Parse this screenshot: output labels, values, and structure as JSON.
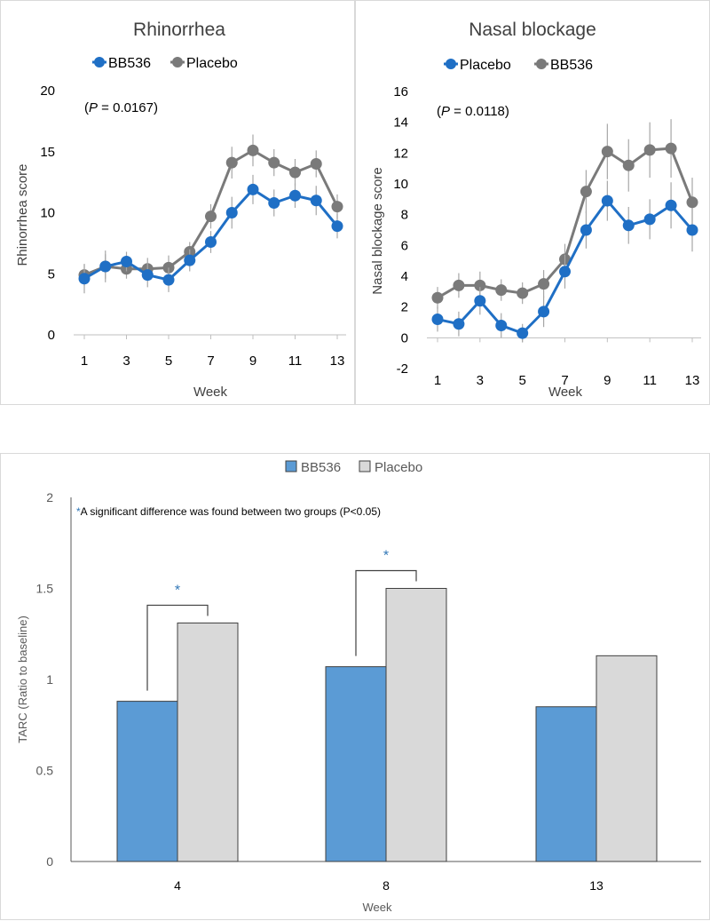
{
  "colors": {
    "blue": "#1f6fc5",
    "gray": "#7a7a7a",
    "bar_blue": "#5b9bd5",
    "bar_gray": "#d9d9d9",
    "star": "#2e75b6",
    "error": "#a6a6a6"
  },
  "chart_data": [
    {
      "id": "rhinorrhea",
      "type": "line",
      "title": "Rhinorrhea",
      "xlabel": "Week",
      "ylabel": "Rhinorrhea score",
      "annotation": "(P = 0.0167)",
      "annotation_parts": [
        "(",
        "P",
        " = 0.0167)"
      ],
      "ylim": [
        0,
        20
      ],
      "yticks": [
        0,
        5,
        10,
        15,
        20
      ],
      "xlim": [
        1,
        13
      ],
      "xticks": [
        1,
        3,
        5,
        7,
        9,
        11,
        13
      ],
      "x": [
        1,
        2,
        3,
        4,
        5,
        6,
        7,
        8,
        9,
        10,
        11,
        12,
        13
      ],
      "legend": [
        {
          "label": "BB536",
          "color": "blue"
        },
        {
          "label": "Placebo",
          "color": "gray"
        }
      ],
      "series": [
        {
          "name": "Placebo",
          "color": "gray",
          "values": [
            4.9,
            5.6,
            5.4,
            5.4,
            5.5,
            6.8,
            9.7,
            14.1,
            15.1,
            14.1,
            13.3,
            14.0,
            10.5
          ],
          "errors": [
            0.9,
            1.3,
            0.8,
            0.9,
            1.0,
            0.8,
            1.0,
            1.3,
            1.3,
            1.1,
            1.1,
            1.1,
            1.0
          ]
        },
        {
          "name": "BB536",
          "color": "blue",
          "values": [
            4.6,
            5.6,
            6.0,
            4.9,
            4.5,
            6.1,
            7.6,
            10.0,
            11.9,
            10.8,
            11.4,
            11.0,
            8.9
          ],
          "errors": [
            1.2,
            1.0,
            0.8,
            1.0,
            1.0,
            0.9,
            0.9,
            1.3,
            1.2,
            1.1,
            1.0,
            1.2,
            1.0
          ]
        }
      ]
    },
    {
      "id": "nasal",
      "type": "line",
      "title": "Nasal blockage",
      "xlabel": "Week",
      "ylabel": "Nasal blockage score",
      "annotation": "(P = 0.0118)",
      "annotation_parts": [
        "(",
        "P",
        " = 0.0118)"
      ],
      "ylim": [
        -2,
        16
      ],
      "yticks": [
        -2,
        0,
        2,
        4,
        6,
        8,
        10,
        12,
        14,
        16
      ],
      "xlim": [
        1,
        13
      ],
      "xticks": [
        1,
        3,
        5,
        7,
        9,
        11,
        13
      ],
      "x": [
        1,
        2,
        3,
        4,
        5,
        6,
        7,
        8,
        9,
        10,
        11,
        12,
        13
      ],
      "legend": [
        {
          "label": "Placebo",
          "color": "blue"
        },
        {
          "label": "BB536",
          "color": "gray"
        }
      ],
      "series": [
        {
          "name": "BB536",
          "color": "gray",
          "values": [
            2.6,
            3.4,
            3.4,
            3.1,
            2.9,
            3.5,
            5.1,
            9.5,
            12.1,
            11.2,
            12.2,
            12.3,
            8.8
          ],
          "errors": [
            0.7,
            0.8,
            0.9,
            0.7,
            0.7,
            0.9,
            1.0,
            1.4,
            1.8,
            1.7,
            1.8,
            1.9,
            1.6
          ]
        },
        {
          "name": "Placebo",
          "color": "blue",
          "values": [
            1.2,
            0.9,
            2.4,
            0.8,
            0.3,
            1.7,
            4.3,
            7.0,
            8.9,
            7.3,
            7.7,
            8.6,
            7.0
          ],
          "errors": [
            0.8,
            0.8,
            0.9,
            0.8,
            0.6,
            1.0,
            1.1,
            1.2,
            1.3,
            1.2,
            1.3,
            1.5,
            1.4
          ]
        }
      ]
    },
    {
      "id": "tarc",
      "type": "bar",
      "title": "",
      "xlabel": "Week",
      "ylabel": "TARC (Ratio to baseline)",
      "ylim": [
        0,
        2
      ],
      "yticks": [
        "0",
        "0.5",
        "1",
        "1.5",
        "2"
      ],
      "ytick_values": [
        0,
        0.5,
        1,
        1.5,
        2
      ],
      "categories": [
        "4",
        "8",
        "13"
      ],
      "series": [
        {
          "name": "BB536",
          "color": "bar_blue",
          "values": [
            0.88,
            1.07,
            0.85
          ]
        },
        {
          "name": "Placebo",
          "color": "bar_gray",
          "values": [
            1.31,
            1.5,
            1.13
          ]
        }
      ],
      "legend": [
        {
          "label": "BB536",
          "color": "bar_blue"
        },
        {
          "label": "Placebo",
          "color": "bar_gray"
        }
      ],
      "note_star": "*",
      "note": "A significant difference was found between two groups (P<0.05)",
      "significance": [
        {
          "category": "4",
          "marker": "*"
        },
        {
          "category": "8",
          "marker": "*"
        }
      ]
    }
  ]
}
